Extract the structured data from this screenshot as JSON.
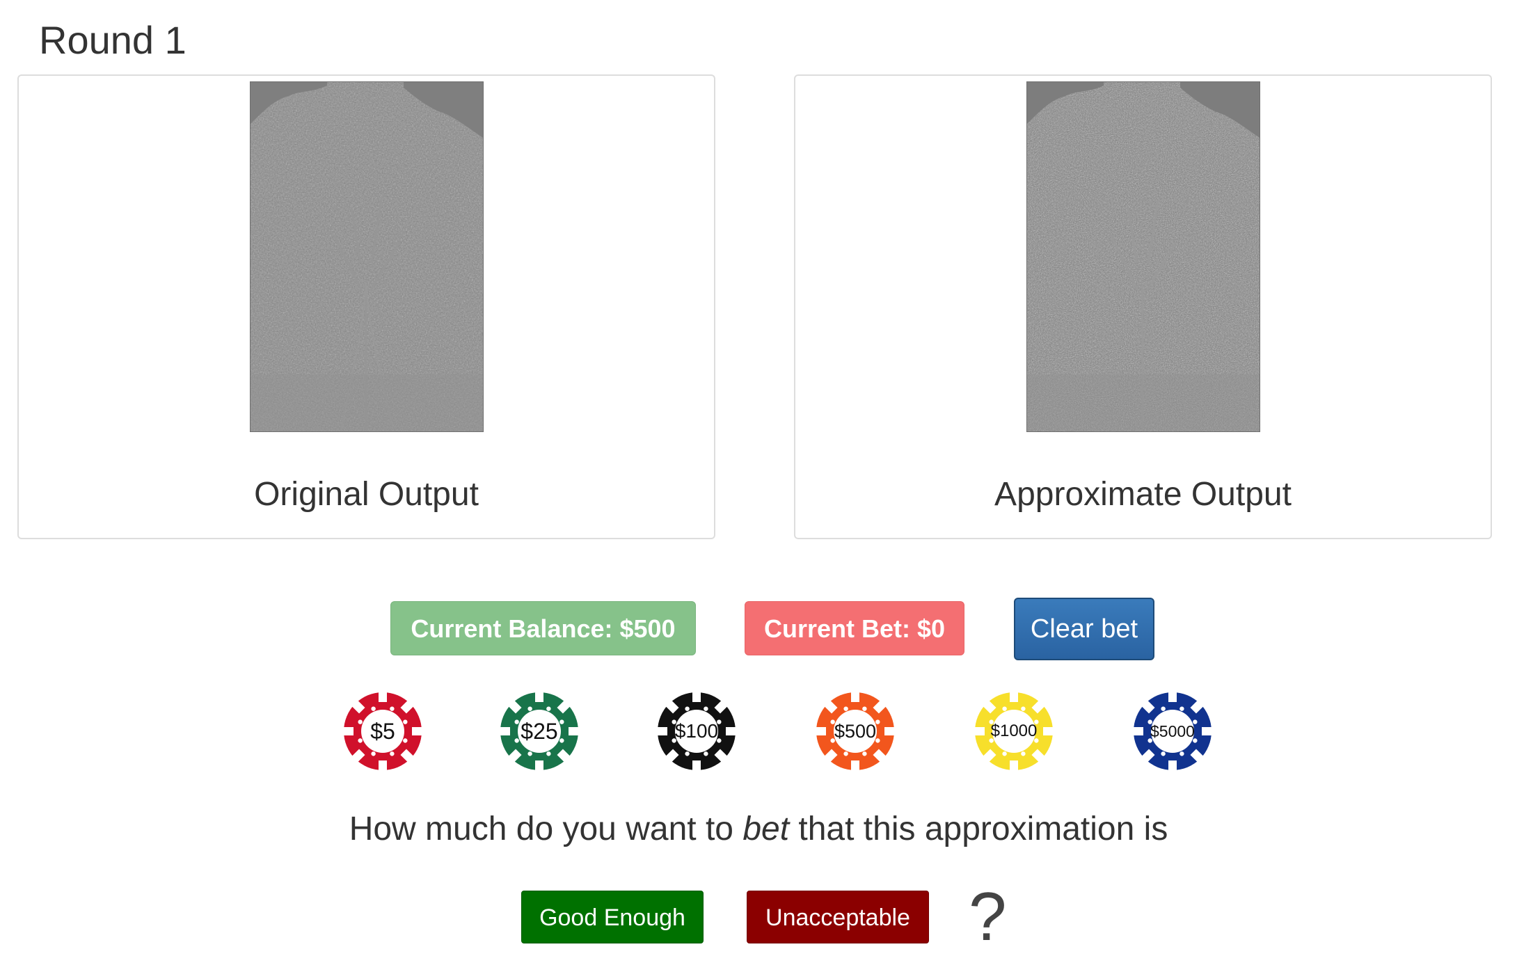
{
  "round": {
    "title": "Round 1"
  },
  "panels": [
    {
      "caption": "Original Output",
      "image_icon": "embossed-tree-image"
    },
    {
      "caption": "Approximate Output",
      "image_icon": "embossed-tree-image"
    }
  ],
  "status": {
    "balance": "Current Balance: $500",
    "bet": "Current Bet: $0",
    "balance_color": "#86c28a",
    "bet_color": "#f46f72"
  },
  "controls": {
    "clear_bet": "Clear bet"
  },
  "chips": [
    {
      "label": "$5",
      "color": "#d0112b"
    },
    {
      "label": "$25",
      "color": "#18744a"
    },
    {
      "label": "$100",
      "color": "#111111"
    },
    {
      "label": "$500",
      "color": "#f2561d"
    },
    {
      "label": "$1000",
      "color": "#f7df2b"
    },
    {
      "label": "$5000",
      "color": "#11338f"
    }
  ],
  "question": {
    "prefix": "How much do you want to ",
    "emphasis": "bet",
    "suffix": " that this approximation is"
  },
  "answers": {
    "good": "Good Enough",
    "bad": "Unacceptable",
    "marker": "?"
  }
}
